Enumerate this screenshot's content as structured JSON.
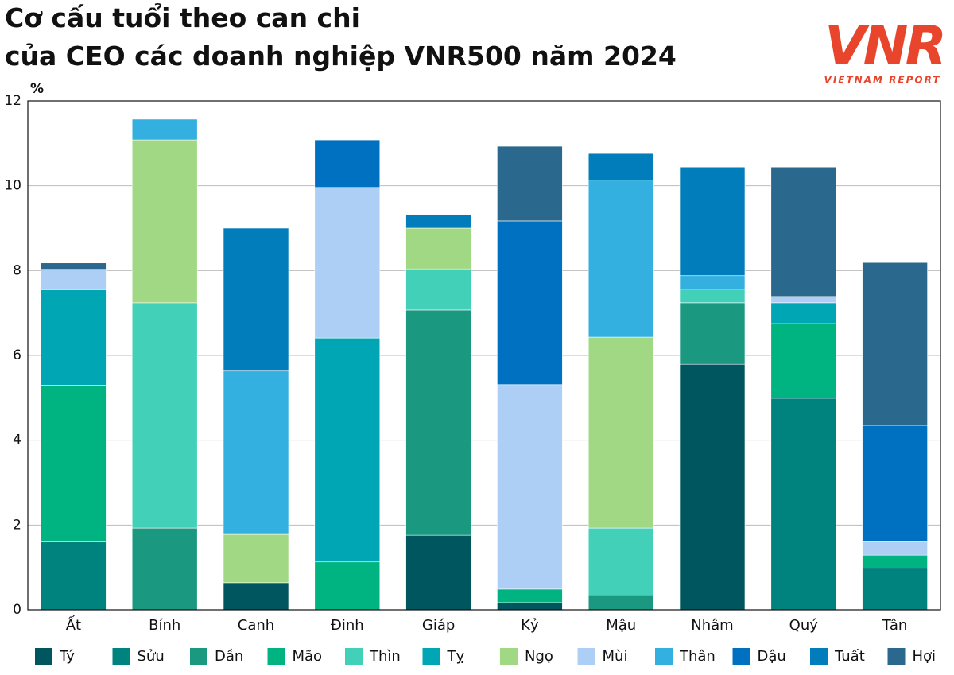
{
  "chart_data": {
    "type": "stacked_bar",
    "title": [
      "Cơ cấu tuổi theo can chi",
      "của CEO các doanh nghiệp VNR500 năm 2024"
    ],
    "y_label": "%",
    "categories": [
      "Ất",
      "Bính",
      "Canh",
      "Đinh",
      "Giáp",
      "Kỷ",
      "Mậu",
      "Nhâm",
      "Quý",
      "Tân"
    ],
    "series": [
      {
        "name": "Tý",
        "color": "#00565f",
        "values": [
          0,
          0,
          0.64,
          0,
          1.76,
          0.17,
          0,
          5.79,
          0,
          0
        ]
      },
      {
        "name": "Sửu",
        "color": "#00827f",
        "values": [
          1.6,
          0,
          0,
          0,
          0,
          0,
          0,
          0,
          4.99,
          0.98
        ]
      },
      {
        "name": "Dần",
        "color": "#1a9880",
        "values": [
          0,
          1.93,
          0,
          0,
          5.31,
          0,
          0.34,
          1.45,
          0,
          0
        ]
      },
      {
        "name": "Mão",
        "color": "#00b482",
        "values": [
          3.7,
          0,
          0,
          1.13,
          0,
          0.32,
          0,
          0,
          1.76,
          0.31
        ]
      },
      {
        "name": "Thìn",
        "color": "#42d0b8",
        "values": [
          0,
          5.31,
          0,
          0,
          0.97,
          0,
          1.59,
          0.32,
          0,
          0
        ]
      },
      {
        "name": "Tỵ",
        "color": "#00a6b4",
        "values": [
          2.25,
          0,
          0,
          5.28,
          0,
          0,
          0,
          0,
          0.49,
          0
        ]
      },
      {
        "name": "Ngọ",
        "color": "#a0d884",
        "values": [
          0,
          3.84,
          1.14,
          0,
          0.96,
          0,
          4.5,
          0,
          0,
          0
        ]
      },
      {
        "name": "Mùi",
        "color": "#aecff5",
        "values": [
          0.48,
          0,
          0,
          3.55,
          0,
          4.82,
          0,
          0,
          0.15,
          0.32
        ]
      },
      {
        "name": "Thân",
        "color": "#33afe0",
        "values": [
          0,
          0.49,
          3.85,
          0,
          0,
          0,
          3.7,
          0.32,
          0,
          0
        ]
      },
      {
        "name": "Dậu",
        "color": "#0070c0",
        "values": [
          0,
          0,
          0,
          1.12,
          0,
          3.86,
          0,
          0,
          0,
          2.74
        ]
      },
      {
        "name": "Tuất",
        "color": "#007dba",
        "values": [
          0,
          0,
          3.37,
          0,
          0.32,
          0,
          0.63,
          2.56,
          0,
          0
        ]
      },
      {
        "name": "Hợi",
        "color": "#2a688e",
        "values": [
          0.15,
          0,
          0,
          0,
          0,
          1.76,
          0,
          0,
          3.05,
          3.84
        ]
      }
    ],
    "ylim": [
      0,
      12
    ],
    "yticks": [
      0,
      2,
      4,
      6,
      8,
      10,
      12
    ],
    "grid": true,
    "legend": "bottom"
  },
  "logo": {
    "mark": "VNR",
    "tagline": "VIETNAM REPORT"
  }
}
